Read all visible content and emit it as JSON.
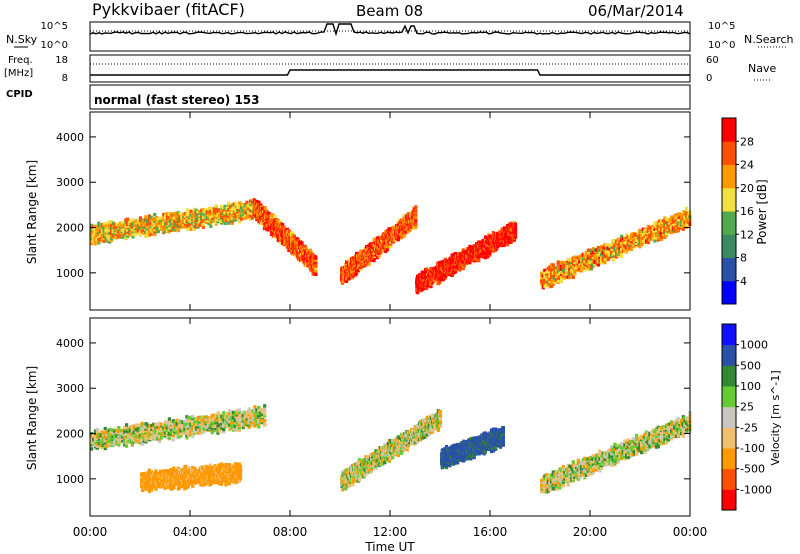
{
  "header": {
    "title": "Pykkvibaer (fitACF)",
    "beam": "Beam 08",
    "date": "06/Mar/2014"
  },
  "noise_panel": {
    "left_label": "N.Sky",
    "right_label": "N.Search",
    "left_ticks": [
      "10^5",
      "10^0"
    ],
    "right_ticks": [
      "10^5",
      "10^0"
    ]
  },
  "freq_panel": {
    "left_label_1": "Freq.",
    "left_label_2": "[MHz]",
    "left_ticks": [
      "18",
      "8"
    ],
    "right_label": "Nave",
    "right_ticks": [
      "60",
      "0"
    ],
    "cpid_label": "CPID"
  },
  "cpid_panel": {
    "text": "normal (fast stereo) 153"
  },
  "colors": {
    "power": [
      "#0000ff",
      "#2a50a8",
      "#3c8a64",
      "#50aa50",
      "#f0e040",
      "#ff9900",
      "#ff5000",
      "#ff0000"
    ],
    "velocity": [
      "#ff0000",
      "#ff5000",
      "#ff9900",
      "#f0c070",
      "#c8c8c0",
      "#66cc33",
      "#338833",
      "#2a50a8",
      "#1010ff"
    ]
  },
  "chart_data": [
    {
      "type": "heatmap",
      "name": "power",
      "ylabel": "Slant Range [km]",
      "ylim": [
        180,
        4550
      ],
      "yticks": [
        1000,
        2000,
        3000,
        4000
      ],
      "x_range_hours": [
        0,
        24
      ],
      "colorbar": {
        "label": "Power [dB]",
        "ticks": [
          "4",
          "8",
          "12",
          "16",
          "20",
          "24",
          "28"
        ],
        "range": [
          0,
          32
        ]
      },
      "features": [
        {
          "t0": 0.0,
          "t1": 6.5,
          "range_start": 1900,
          "range_end": 2450,
          "value": 20
        },
        {
          "t0": 6.5,
          "t1": 9.0,
          "range_start": 2500,
          "range_end": 1200,
          "value": 26
        },
        {
          "t0": 10.0,
          "t1": 13.0,
          "range_start": 1000,
          "range_end": 2300,
          "value": 26
        },
        {
          "t0": 13.0,
          "t1": 17.0,
          "range_start": 800,
          "range_end": 2000,
          "value": 30
        },
        {
          "t0": 18.0,
          "t1": 24.0,
          "range_start": 900,
          "range_end": 2300,
          "value": 22
        }
      ]
    },
    {
      "type": "heatmap",
      "name": "velocity",
      "ylabel": "Slant Range [km]",
      "xlabel": "Time UT",
      "ylim": [
        180,
        4550
      ],
      "yticks": [
        1000,
        2000,
        3000,
        4000
      ],
      "xticks": [
        "00:00",
        "04:00",
        "08:00",
        "12:00",
        "16:00",
        "20:00",
        "00:00"
      ],
      "x_range_hours": [
        0,
        24
      ],
      "colorbar": {
        "label": "Velocity [m s^-1]",
        "ticks": [
          "-1000",
          "-500",
          "-100",
          "-25",
          "25",
          "100",
          "500",
          "1000"
        ]
      },
      "features": [
        {
          "t0": 0.0,
          "t1": 7.0,
          "range_start": 1900,
          "range_end": 2450,
          "value": 0
        },
        {
          "t0": 2.0,
          "t1": 6.0,
          "range_start": 1000,
          "range_end": 1200,
          "value": -200
        },
        {
          "t0": 10.0,
          "t1": 14.0,
          "range_start": 1000,
          "range_end": 2400,
          "value": 0
        },
        {
          "t0": 14.0,
          "t1": 16.5,
          "range_start": 1500,
          "range_end": 2000,
          "value": 600
        },
        {
          "t0": 18.0,
          "t1": 24.0,
          "range_start": 900,
          "range_end": 2300,
          "value": 10
        }
      ]
    }
  ]
}
